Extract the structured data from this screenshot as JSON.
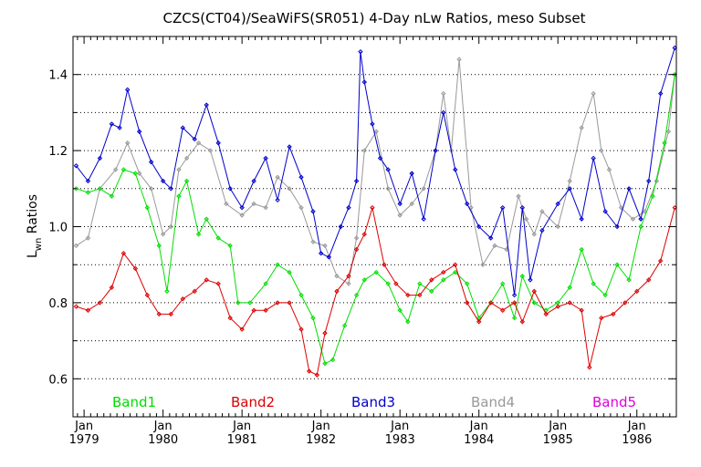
{
  "chart_data": {
    "type": "line",
    "title": "CZCS(CT04)/SeaWiFS(SR051) 4-Day nLw Ratios, meso Subset",
    "ylabel": "L",
    "ylabel_sub": "wn",
    "ylabel_suffix": " Ratios",
    "xlim": [
      1978.86,
      1986.5
    ],
    "ylim": [
      0.5,
      1.5
    ],
    "y_ticks": [
      0.6,
      0.8,
      1.0,
      1.2,
      1.4
    ],
    "y_tick_labels": [
      "0.6",
      "0.8",
      "1.0",
      "1.2",
      "1.4"
    ],
    "x_ticks": [
      1979,
      1980,
      1981,
      1982,
      1983,
      1984,
      1985,
      1986
    ],
    "x_tick_month": "Jan",
    "x_tick_labels": [
      "1979",
      "1980",
      "1981",
      "1982",
      "1983",
      "1984",
      "1985",
      "1986"
    ],
    "grid": "dotted horizontal",
    "legend_placement": "bottom inside",
    "legend": [
      {
        "name": "Band1",
        "color": "#00dd00"
      },
      {
        "name": "Band2",
        "color": "#dd0000"
      },
      {
        "name": "Band3",
        "color": "#0000cc"
      },
      {
        "name": "Band4",
        "color": "#999999"
      },
      {
        "name": "Band5",
        "color": "#dd00dd"
      }
    ],
    "series": [
      {
        "name": "Band4",
        "color": "#999999",
        "x": [
          1978.9,
          1979.05,
          1979.2,
          1979.4,
          1979.55,
          1979.7,
          1979.85,
          1980.0,
          1980.1,
          1980.2,
          1980.3,
          1980.45,
          1980.6,
          1980.8,
          1981.0,
          1981.15,
          1981.3,
          1981.45,
          1981.6,
          1981.75,
          1981.9,
          1982.05,
          1982.2,
          1982.35,
          1982.45,
          1982.55,
          1982.7,
          1982.85,
          1983.0,
          1983.15,
          1983.3,
          1983.45,
          1983.55,
          1983.65,
          1983.75,
          1983.9,
          1984.05,
          1984.2,
          1984.35,
          1984.5,
          1984.6,
          1984.7,
          1984.8,
          1985.0,
          1985.15,
          1985.3,
          1985.45,
          1985.55,
          1985.65,
          1985.8,
          1985.95,
          1986.1,
          1986.25,
          1986.4,
          1986.48
        ],
        "y": [
          0.95,
          0.97,
          1.1,
          1.15,
          1.22,
          1.14,
          1.1,
          0.98,
          1.0,
          1.15,
          1.18,
          1.22,
          1.2,
          1.06,
          1.03,
          1.06,
          1.05,
          1.13,
          1.1,
          1.05,
          0.96,
          0.95,
          0.87,
          0.85,
          0.97,
          1.2,
          1.25,
          1.1,
          1.03,
          1.06,
          1.1,
          1.2,
          1.35,
          1.2,
          1.44,
          1.05,
          0.9,
          0.95,
          0.94,
          1.08,
          1.02,
          0.98,
          1.04,
          1.0,
          1.12,
          1.26,
          1.35,
          1.2,
          1.15,
          1.05,
          1.02,
          1.04,
          1.12,
          1.25,
          1.4
        ]
      },
      {
        "name": "Band3",
        "color": "#0000cc",
        "x": [
          1978.9,
          1979.05,
          1979.2,
          1979.35,
          1979.45,
          1979.55,
          1979.7,
          1979.85,
          1980.0,
          1980.1,
          1980.25,
          1980.4,
          1980.55,
          1980.7,
          1980.85,
          1981.0,
          1981.15,
          1981.3,
          1981.45,
          1981.6,
          1981.75,
          1981.9,
          1982.0,
          1982.1,
          1982.25,
          1982.35,
          1982.45,
          1982.5,
          1982.55,
          1982.65,
          1982.75,
          1982.85,
          1983.0,
          1983.15,
          1983.3,
          1983.45,
          1983.55,
          1983.7,
          1983.85,
          1984.0,
          1984.15,
          1984.3,
          1984.45,
          1984.55,
          1984.65,
          1984.8,
          1985.0,
          1985.15,
          1985.3,
          1985.45,
          1985.6,
          1985.75,
          1985.9,
          1986.05,
          1986.15,
          1986.3,
          1986.48
        ],
        "y": [
          1.16,
          1.12,
          1.18,
          1.27,
          1.26,
          1.36,
          1.25,
          1.17,
          1.12,
          1.1,
          1.26,
          1.23,
          1.32,
          1.22,
          1.1,
          1.05,
          1.12,
          1.18,
          1.07,
          1.21,
          1.13,
          1.04,
          0.93,
          0.92,
          1.0,
          1.05,
          1.12,
          1.46,
          1.38,
          1.27,
          1.18,
          1.15,
          1.06,
          1.14,
          1.02,
          1.2,
          1.3,
          1.15,
          1.06,
          1.0,
          0.97,
          1.05,
          0.82,
          1.05,
          0.86,
          0.99,
          1.06,
          1.1,
          1.02,
          1.18,
          1.04,
          1.0,
          1.1,
          1.02,
          1.12,
          1.35,
          1.47
        ]
      },
      {
        "name": "Band1",
        "color": "#00dd00",
        "x": [
          1978.9,
          1979.05,
          1979.2,
          1979.35,
          1979.5,
          1979.65,
          1979.8,
          1979.95,
          1980.05,
          1980.2,
          1980.3,
          1980.45,
          1980.55,
          1980.7,
          1980.85,
          1980.95,
          1981.1,
          1981.3,
          1981.45,
          1981.6,
          1981.75,
          1981.9,
          1982.05,
          1982.15,
          1982.3,
          1982.45,
          1982.55,
          1982.7,
          1982.85,
          1983.0,
          1983.1,
          1983.25,
          1983.4,
          1983.55,
          1983.7,
          1983.85,
          1984.0,
          1984.15,
          1984.3,
          1984.45,
          1984.55,
          1984.7,
          1984.85,
          1985.0,
          1985.15,
          1985.3,
          1985.45,
          1985.6,
          1985.75,
          1985.9,
          1986.05,
          1986.2,
          1986.35,
          1986.48
        ],
        "y": [
          1.1,
          1.09,
          1.1,
          1.08,
          1.15,
          1.14,
          1.05,
          0.95,
          0.83,
          1.08,
          1.12,
          0.98,
          1.02,
          0.97,
          0.95,
          0.8,
          0.8,
          0.85,
          0.9,
          0.88,
          0.82,
          0.76,
          0.64,
          0.65,
          0.74,
          0.82,
          0.86,
          0.88,
          0.85,
          0.78,
          0.75,
          0.85,
          0.83,
          0.86,
          0.88,
          0.85,
          0.76,
          0.8,
          0.85,
          0.76,
          0.87,
          0.8,
          0.78,
          0.8,
          0.84,
          0.94,
          0.85,
          0.82,
          0.9,
          0.86,
          1.0,
          1.08,
          1.22,
          1.4
        ]
      },
      {
        "name": "Band2",
        "color": "#dd0000",
        "x": [
          1978.9,
          1979.05,
          1979.2,
          1979.35,
          1979.5,
          1979.65,
          1979.8,
          1979.95,
          1980.1,
          1980.25,
          1980.4,
          1980.55,
          1980.7,
          1980.85,
          1981.0,
          1981.15,
          1981.3,
          1981.45,
          1981.6,
          1981.75,
          1981.85,
          1981.95,
          1982.05,
          1982.2,
          1982.35,
          1982.45,
          1982.55,
          1982.65,
          1982.8,
          1982.95,
          1983.1,
          1983.25,
          1983.4,
          1983.55,
          1983.7,
          1983.85,
          1984.0,
          1984.15,
          1984.3,
          1984.45,
          1984.55,
          1984.7,
          1984.85,
          1985.0,
          1985.15,
          1985.3,
          1985.4,
          1985.55,
          1985.7,
          1985.85,
          1986.0,
          1986.15,
          1986.3,
          1986.48
        ],
        "y": [
          0.79,
          0.78,
          0.8,
          0.84,
          0.93,
          0.89,
          0.82,
          0.77,
          0.77,
          0.81,
          0.83,
          0.86,
          0.85,
          0.76,
          0.73,
          0.78,
          0.78,
          0.8,
          0.8,
          0.73,
          0.62,
          0.61,
          0.72,
          0.83,
          0.87,
          0.94,
          0.98,
          1.05,
          0.9,
          0.85,
          0.82,
          0.82,
          0.86,
          0.88,
          0.9,
          0.8,
          0.75,
          0.8,
          0.78,
          0.8,
          0.75,
          0.83,
          0.77,
          0.79,
          0.8,
          0.78,
          0.63,
          0.76,
          0.77,
          0.8,
          0.83,
          0.86,
          0.91,
          1.05
        ]
      }
    ]
  }
}
